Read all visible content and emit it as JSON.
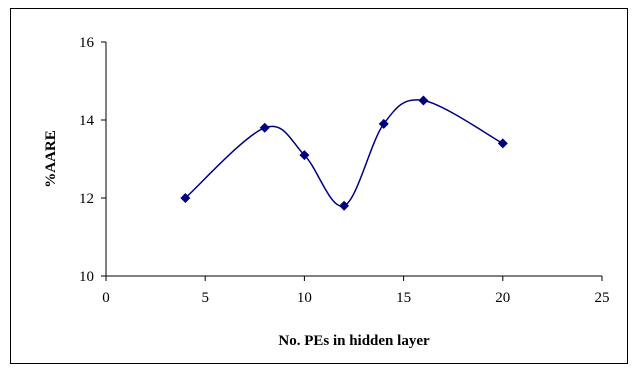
{
  "chart_data": {
    "type": "scatter",
    "title": "",
    "xlabel": "No. PEs in hidden layer",
    "ylabel": "%AARE",
    "xlim": [
      0,
      25
    ],
    "ylim": [
      10,
      16
    ],
    "x_ticks": [
      0,
      5,
      10,
      15,
      20,
      25
    ],
    "y_ticks": [
      10,
      12,
      14,
      16
    ],
    "grid": false,
    "legend": "none",
    "smooth_line": true,
    "marker": "diamond",
    "color": "#000080",
    "series": [
      {
        "x": [
          4,
          8,
          10,
          12,
          14,
          16,
          20
        ],
        "y": [
          12.0,
          13.8,
          13.1,
          11.8,
          13.9,
          14.5,
          13.4
        ]
      }
    ]
  }
}
